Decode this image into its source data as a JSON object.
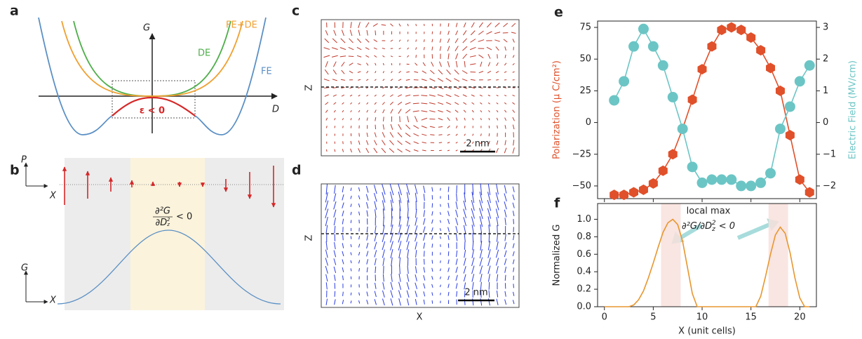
{
  "panels": {
    "a": {
      "label": "a",
      "y_axis": "G",
      "x_axis": "D",
      "curves": [
        "FE+DE",
        "DE",
        "FE"
      ],
      "annotation": "ε < 0"
    },
    "b": {
      "label": "b",
      "top_y_axis": "P",
      "top_x_axis": "X",
      "numerator": "∂²G",
      "denominator": [
        "∂D",
        "z",
        "2"
      ],
      "relation": "< 0",
      "bottom_y_axis": "G",
      "bottom_x_axis": "X"
    },
    "c": {
      "label": "c",
      "z_axis": "Z",
      "scale_bar": "2 nm"
    },
    "d": {
      "label": "d",
      "z_axis": "Z",
      "x_axis": "X",
      "scale_bar": "2 nm"
    }
  },
  "chart_data": [
    {
      "type": "line",
      "label": "e",
      "x": [
        1,
        2,
        3,
        4,
        5,
        6,
        7,
        8,
        9,
        10,
        11,
        12,
        13,
        14,
        15,
        16,
        17,
        18,
        19,
        20,
        21
      ],
      "xlim": [
        -0.7,
        21.7
      ],
      "xticks": [
        0,
        5,
        10,
        15,
        20
      ],
      "xticklabels": false,
      "ylabel": "Polarization (μ C/cm²)",
      "ylim": [
        -60,
        80
      ],
      "yticks": [
        {
          "value": -50,
          "label": "−50"
        },
        {
          "value": -25,
          "label": "−25"
        },
        0,
        25,
        50,
        75
      ],
      "y2label": "Electric Field (MV/cm)",
      "y2lim": [
        -2.4,
        3.2
      ],
      "y2ticks": [
        {
          "value": -2,
          "label": "−2"
        },
        {
          "value": -1,
          "label": "−1"
        },
        0,
        1,
        2,
        3
      ],
      "series": [
        {
          "color": "#e0502a",
          "marker": "hexagon",
          "values": [
            -57,
            -57,
            -55,
            -53,
            -48,
            -38,
            -25,
            -5,
            18,
            42,
            60,
            73,
            75,
            73,
            67,
            57,
            43,
            25,
            -10,
            -45,
            -55
          ]
        },
        {
          "color": "#6cc5c5",
          "marker": "circle",
          "axis": "y2",
          "values": [
            0.7,
            1.3,
            2.4,
            2.95,
            2.4,
            1.8,
            0.8,
            -0.2,
            -1.4,
            -1.9,
            -1.8,
            -1.8,
            -1.8,
            -2,
            -2,
            -1.9,
            -1.6,
            -0.2,
            0.5,
            1.3,
            1.8
          ]
        }
      ]
    },
    {
      "type": "line",
      "label": "f",
      "x": [
        0,
        2.5,
        3,
        3.5,
        4,
        4.5,
        5,
        5.5,
        6,
        6.5,
        7,
        7.5,
        8,
        8.5,
        9,
        9.5,
        15.5,
        16,
        16.5,
        17,
        17.5,
        18,
        18.5,
        19,
        19.5,
        20,
        20.5,
        21
      ],
      "values": [
        0,
        0,
        0.02,
        0.08,
        0.18,
        0.33,
        0.5,
        0.68,
        0.85,
        0.96,
        1.0,
        0.94,
        0.75,
        0.45,
        0.15,
        0,
        0,
        0.12,
        0.35,
        0.6,
        0.82,
        0.91,
        0.84,
        0.62,
        0.33,
        0.1,
        0,
        0
      ],
      "color": "#e8962e",
      "xlim": [
        -0.7,
        21.7
      ],
      "xticks": [
        0,
        5,
        10,
        15,
        20
      ],
      "xlabel": "X (unit cells)",
      "ylabel": "Normalized G",
      "ylim": [
        0,
        1.18
      ],
      "yticks": [
        {
          "value": 0,
          "label": "0.0"
        },
        0.2,
        0.4,
        0.6,
        0.8,
        {
          "value": 1,
          "label": "1.0"
        }
      ],
      "shaded_regions": [
        [
          5.8,
          7.8
        ],
        [
          16.8,
          18.8
        ]
      ],
      "annotation": "local max",
      "condition": [
        "∂²G/∂D",
        "z",
        "2",
        " < 0"
      ]
    }
  ]
}
